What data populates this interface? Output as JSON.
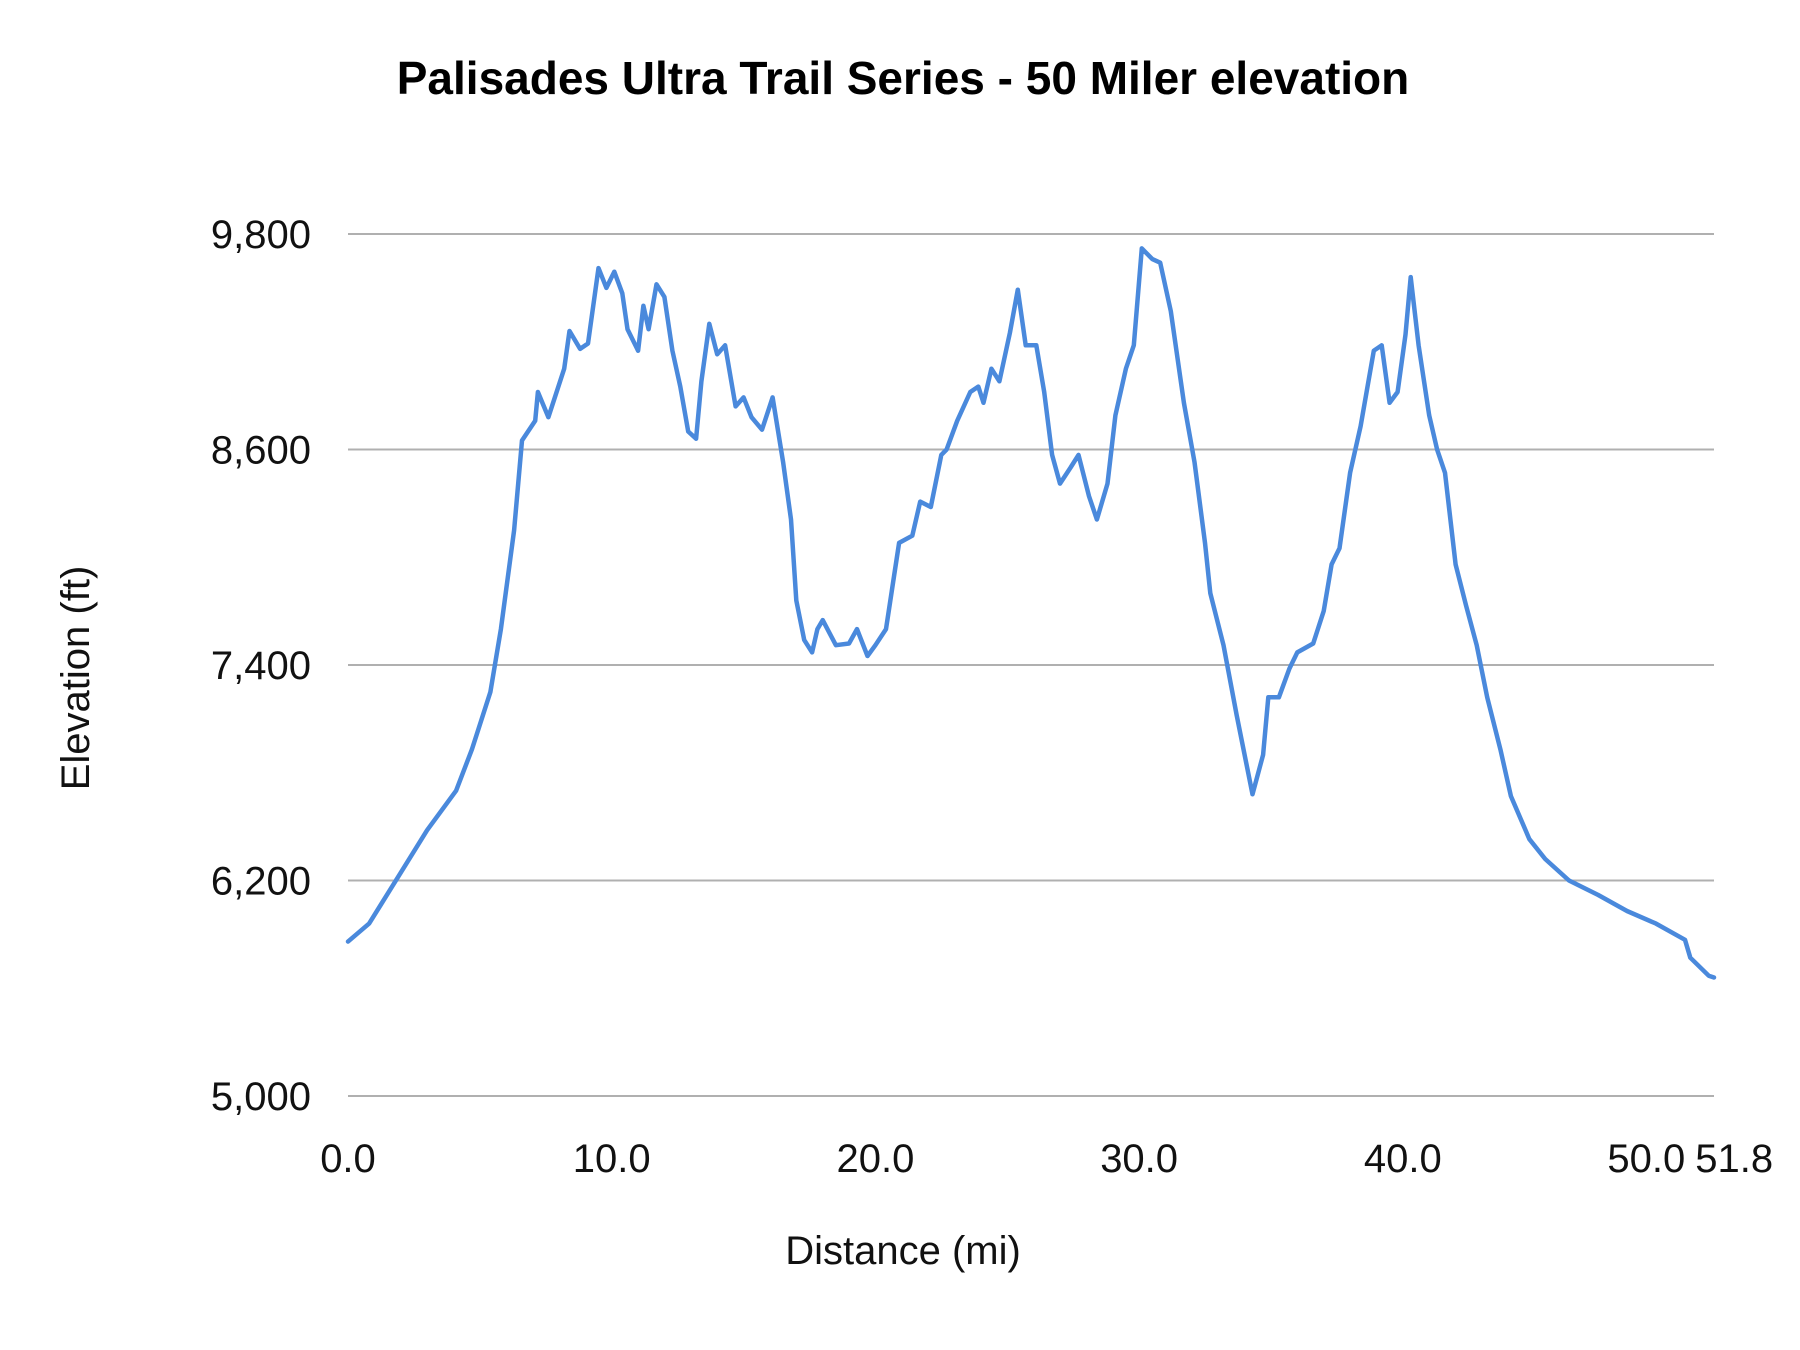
{
  "chart_data": {
    "type": "line",
    "title": "Palisades Ultra Trail Series - 50 Miler elevation",
    "xlabel": "Distance (mi)",
    "ylabel": "Elevation (ft)",
    "xlim": [
      0,
      51.8
    ],
    "ylim": [
      5000,
      9800
    ],
    "x_ticks": [
      "0.0",
      "10.0",
      "20.0",
      "30.0",
      "40.0",
      "50.0",
      "51.8"
    ],
    "x_tick_values": [
      0,
      10,
      20,
      30,
      40,
      50,
      51.8
    ],
    "y_ticks": [
      "5,000",
      "6,200",
      "7,400",
      "8,600",
      "9,800"
    ],
    "y_tick_values": [
      5000,
      6200,
      7400,
      8600,
      9800
    ],
    "grid": "horizontal",
    "legend": "none",
    "line_color": "#4a89dc",
    "series": [
      {
        "points": [
          [
            0,
            5860
          ],
          [
            0.8,
            5960
          ],
          [
            1.9,
            6220
          ],
          [
            3.0,
            6480
          ],
          [
            4.1,
            6700
          ],
          [
            4.7,
            6930
          ],
          [
            5.4,
            7250
          ],
          [
            5.8,
            7600
          ],
          [
            6.3,
            8150
          ],
          [
            6.6,
            8650
          ],
          [
            7.1,
            8760
          ],
          [
            7.2,
            8920
          ],
          [
            7.6,
            8780
          ],
          [
            8.2,
            9050
          ],
          [
            8.4,
            9260
          ],
          [
            8.8,
            9160
          ],
          [
            9.1,
            9190
          ],
          [
            9.5,
            9610
          ],
          [
            9.8,
            9500
          ],
          [
            10.1,
            9590
          ],
          [
            10.4,
            9470
          ],
          [
            10.6,
            9270
          ],
          [
            11.0,
            9150
          ],
          [
            11.2,
            9400
          ],
          [
            11.4,
            9270
          ],
          [
            11.7,
            9520
          ],
          [
            12.0,
            9450
          ],
          [
            12.3,
            9150
          ],
          [
            12.6,
            8950
          ],
          [
            12.9,
            8700
          ],
          [
            13.2,
            8660
          ],
          [
            13.4,
            8980
          ],
          [
            13.7,
            9300
          ],
          [
            14.0,
            9130
          ],
          [
            14.3,
            9180
          ],
          [
            14.7,
            8840
          ],
          [
            15.0,
            8890
          ],
          [
            15.3,
            8780
          ],
          [
            15.7,
            8710
          ],
          [
            16.1,
            8890
          ],
          [
            16.5,
            8530
          ],
          [
            16.8,
            8210
          ],
          [
            17.0,
            7760
          ],
          [
            17.3,
            7540
          ],
          [
            17.6,
            7470
          ],
          [
            17.8,
            7600
          ],
          [
            18.0,
            7650
          ],
          [
            18.5,
            7510
          ],
          [
            19.0,
            7520
          ],
          [
            19.3,
            7600
          ],
          [
            19.7,
            7450
          ],
          [
            20.0,
            7510
          ],
          [
            20.4,
            7600
          ],
          [
            20.7,
            7890
          ],
          [
            20.9,
            8080
          ],
          [
            21.4,
            8120
          ],
          [
            21.7,
            8310
          ],
          [
            22.1,
            8280
          ],
          [
            22.5,
            8570
          ],
          [
            22.7,
            8600
          ],
          [
            23.1,
            8760
          ],
          [
            23.6,
            8920
          ],
          [
            23.9,
            8950
          ],
          [
            24.1,
            8860
          ],
          [
            24.4,
            9050
          ],
          [
            24.7,
            8980
          ],
          [
            25.1,
            9250
          ],
          [
            25.4,
            9490
          ],
          [
            25.7,
            9180
          ],
          [
            26.1,
            9180
          ],
          [
            26.4,
            8920
          ],
          [
            26.7,
            8570
          ],
          [
            27.0,
            8410
          ],
          [
            27.4,
            8500
          ],
          [
            27.7,
            8570
          ],
          [
            28.1,
            8340
          ],
          [
            28.4,
            8210
          ],
          [
            28.8,
            8410
          ],
          [
            29.1,
            8790
          ],
          [
            29.5,
            9050
          ],
          [
            29.8,
            9180
          ],
          [
            30.1,
            9720
          ],
          [
            30.5,
            9660
          ],
          [
            30.8,
            9640
          ],
          [
            31.2,
            9370
          ],
          [
            31.7,
            8860
          ],
          [
            32.1,
            8530
          ],
          [
            32.5,
            8080
          ],
          [
            32.7,
            7800
          ],
          [
            33.2,
            7510
          ],
          [
            33.7,
            7120
          ],
          [
            34.3,
            6680
          ],
          [
            34.7,
            6900
          ],
          [
            34.9,
            7220
          ],
          [
            35.3,
            7220
          ],
          [
            35.7,
            7380
          ],
          [
            36.0,
            7470
          ],
          [
            36.6,
            7520
          ],
          [
            37.0,
            7700
          ],
          [
            37.3,
            7960
          ],
          [
            37.6,
            8050
          ],
          [
            38.0,
            8470
          ],
          [
            38.4,
            8730
          ],
          [
            38.9,
            9150
          ],
          [
            39.2,
            9180
          ],
          [
            39.5,
            8860
          ],
          [
            39.8,
            8920
          ],
          [
            40.1,
            9240
          ],
          [
            40.3,
            9560
          ],
          [
            40.6,
            9180
          ],
          [
            41.0,
            8790
          ],
          [
            41.3,
            8600
          ],
          [
            41.6,
            8470
          ],
          [
            42.0,
            7960
          ],
          [
            42.4,
            7730
          ],
          [
            42.8,
            7510
          ],
          [
            43.2,
            7220
          ],
          [
            43.7,
            6930
          ],
          [
            44.1,
            6670
          ],
          [
            44.8,
            6430
          ],
          [
            45.4,
            6320
          ],
          [
            46.3,
            6200
          ],
          [
            47.4,
            6120
          ],
          [
            48.5,
            6030
          ],
          [
            49.6,
            5960
          ],
          [
            50.7,
            5870
          ],
          [
            50.9,
            5770
          ],
          [
            51.6,
            5670
          ],
          [
            51.8,
            5660
          ]
        ]
      }
    ]
  }
}
